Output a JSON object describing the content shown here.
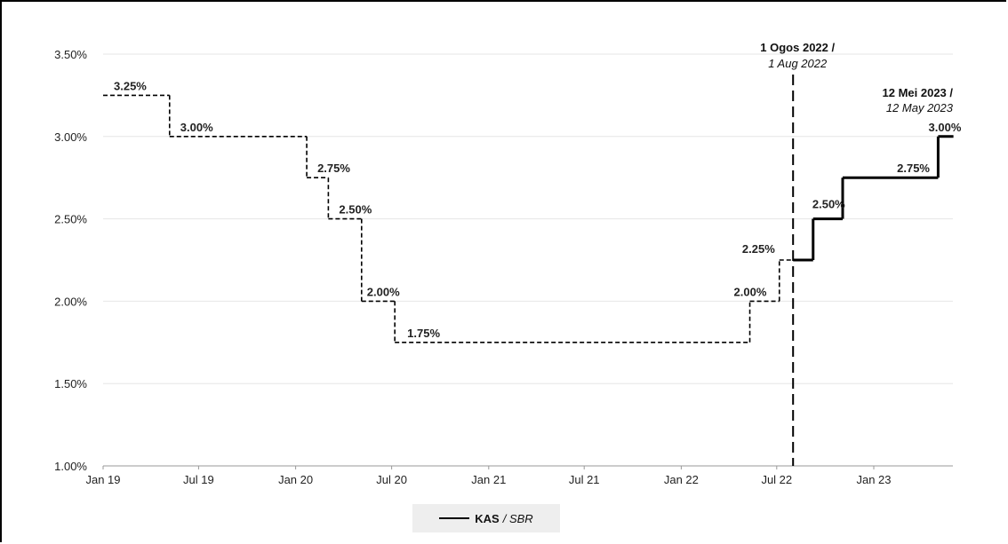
{
  "chart_data": {
    "type": "line",
    "title": "",
    "xlabel": "",
    "ylabel": "",
    "ylim": [
      0.01,
      0.035
    ],
    "y_ticks": [
      "3.50%",
      "3.00%",
      "2.50%",
      "2.00%",
      "1.50%",
      "1.00%"
    ],
    "y_tick_values": [
      0.035,
      0.03,
      0.025,
      0.02,
      0.015,
      0.01
    ],
    "x_ticks": [
      "Jan 19",
      "Jul 19",
      "Jan 20",
      "Jul 20",
      "Jan 21",
      "Jul 21",
      "Jan 22",
      "Jul 22",
      "Jan 23"
    ],
    "x_tick_values": [
      "2019-01",
      "2019-07",
      "2020-01",
      "2020-07",
      "2021-01",
      "2021-07",
      "2022-01",
      "2022-07",
      "2023-01"
    ],
    "xlim": [
      "2019-01",
      "2023-07"
    ],
    "grid": "horizontal",
    "legend": "bottom-center",
    "series": [
      {
        "name": "KAS / SBR",
        "style": "step",
        "points": [
          {
            "x": "2019-01-01",
            "y": 0.0325,
            "style": "dashed"
          },
          {
            "x": "2019-05-07",
            "y": 0.03,
            "style": "dashed"
          },
          {
            "x": "2020-01-22",
            "y": 0.0275,
            "style": "dashed"
          },
          {
            "x": "2020-03-03",
            "y": 0.025,
            "style": "dashed"
          },
          {
            "x": "2020-05-05",
            "y": 0.02,
            "style": "dashed"
          },
          {
            "x": "2020-07-07",
            "y": 0.0175,
            "style": "dashed"
          },
          {
            "x": "2022-05-11",
            "y": 0.02,
            "style": "dashed"
          },
          {
            "x": "2022-07-06",
            "y": 0.0225,
            "style": "dashed"
          },
          {
            "x": "2022-08-01",
            "y": 0.0225,
            "style": "solid"
          },
          {
            "x": "2022-09-08",
            "y": 0.025,
            "style": "solid"
          },
          {
            "x": "2022-11-03",
            "y": 0.0275,
            "style": "solid"
          },
          {
            "x": "2023-05-03",
            "y": 0.03,
            "style": "solid"
          }
        ],
        "end_x": "2023-06-01"
      }
    ],
    "data_labels": [
      "3.25%",
      "3.00%",
      "2.75%",
      "2.50%",
      "2.00%",
      "1.75%",
      "2.00%",
      "2.25%",
      "2.50%",
      "2.75%",
      "3.00%"
    ],
    "annotations": [
      {
        "x": "2022-08-01",
        "line1": "1 Ogos 2022 /",
        "line2": "1 Aug 2022",
        "line_style": "dashed-vertical"
      },
      {
        "x": "2023-05-12",
        "line1": "12 Mei 2023 /",
        "line2": "12 May 2023"
      }
    ]
  },
  "legend": {
    "label_bold": "KAS",
    "label_italic": "/ SBR"
  }
}
